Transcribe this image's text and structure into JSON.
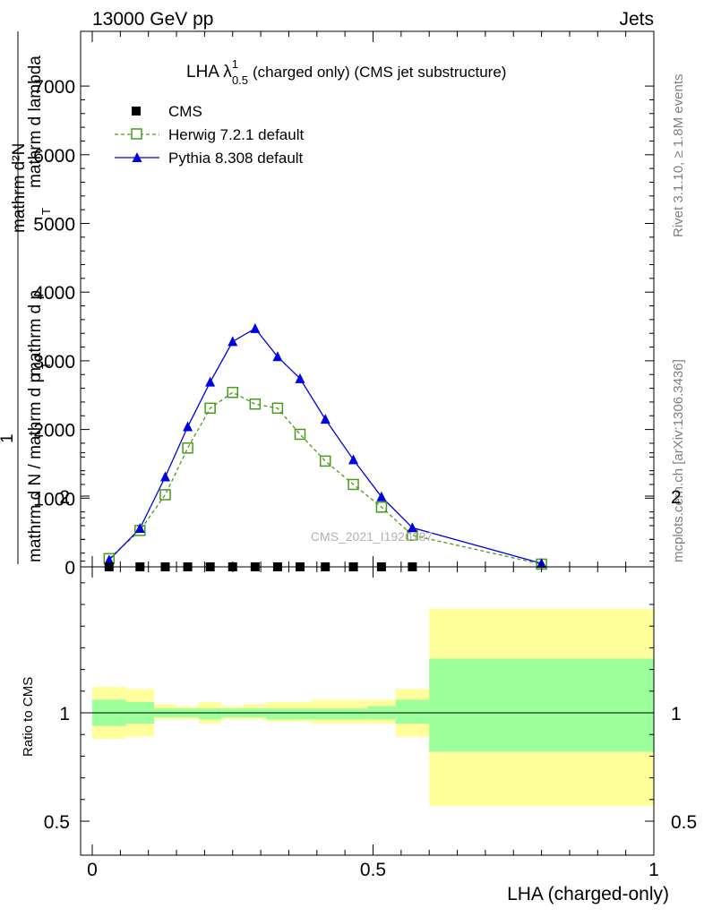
{
  "header": {
    "left": "13000 GeV pp",
    "right": "Jets"
  },
  "side_text": {
    "rivet": "Rivet 3.1.10, ≥ 1.8M events",
    "mcplots": "mcplots.cern.ch [arXiv:1306.3436]"
  },
  "watermark": "CMS_2021_I1920187",
  "chart_data": [
    {
      "type": "line",
      "title": "LHA λ¹₀.₅ (charged only) (CMS jet substructure)",
      "title_main": "LHA λ",
      "title_sup": "1",
      "title_sub": "0.5",
      "title_rest": "(charged only) (CMS jet substructure)",
      "ylabel_numerator": "mathrm d²N",
      "ylabel_numerator2": "mathrm d p",
      "ylabel_fraction_one": "1",
      "ylabel_denominator": "mathrm d N / mathrm d p",
      "ylabel_extra": "mathrm d lambda",
      "ylabel_sub": "T",
      "ylim": [
        0,
        7800
      ],
      "yticks": [
        0,
        1000,
        2000,
        3000,
        4000,
        5000,
        6000,
        7000
      ],
      "legend_position": "top-left",
      "series": [
        {
          "name": "CMS",
          "style": "black-square",
          "x": [
            0.03,
            0.085,
            0.13,
            0.17,
            0.21,
            0.25,
            0.29,
            0.33,
            0.37,
            0.415,
            0.465,
            0.515,
            0.57
          ],
          "values": [
            0,
            0,
            0,
            0,
            0,
            0,
            0,
            0,
            0,
            0,
            0,
            0,
            0
          ]
        },
        {
          "name": "Herwig 7.2.1 default",
          "style": "green-open-square-dashed",
          "x": [
            0.03,
            0.085,
            0.13,
            0.17,
            0.21,
            0.25,
            0.29,
            0.33,
            0.37,
            0.415,
            0.465,
            0.515,
            0.57,
            0.8
          ],
          "values": [
            120,
            530,
            1050,
            1730,
            2310,
            2540,
            2370,
            2310,
            1930,
            1540,
            1200,
            870,
            460,
            40
          ]
        },
        {
          "name": "Pythia 8.308 default",
          "style": "blue-filled-triangle-solid",
          "x": [
            0.03,
            0.085,
            0.13,
            0.17,
            0.21,
            0.25,
            0.29,
            0.33,
            0.37,
            0.415,
            0.465,
            0.515,
            0.57,
            0.8
          ],
          "values": [
            100,
            560,
            1310,
            2040,
            2690,
            3280,
            3470,
            3060,
            2740,
            2150,
            1560,
            1020,
            570,
            50
          ]
        }
      ]
    },
    {
      "type": "area",
      "ylabel": "Ratio to CMS",
      "xlabel": "LHA (charged-only)",
      "xlim": [
        0,
        1
      ],
      "xticks": [
        "0",
        "0.5",
        "1"
      ],
      "ylim": [
        0.3,
        2.3
      ],
      "yticks": [
        "0.5",
        "1",
        "2"
      ],
      "bins": [
        {
          "lo": 0.0,
          "hi": 0.06,
          "inner": [
            0.94,
            1.06
          ],
          "outer": [
            0.88,
            1.12
          ]
        },
        {
          "lo": 0.06,
          "hi": 0.11,
          "inner": [
            0.95,
            1.05
          ],
          "outer": [
            0.89,
            1.11
          ]
        },
        {
          "lo": 0.11,
          "hi": 0.15,
          "inner": [
            0.98,
            1.02
          ],
          "outer": [
            0.97,
            1.04
          ]
        },
        {
          "lo": 0.15,
          "hi": 0.19,
          "inner": [
            0.98,
            1.02
          ],
          "outer": [
            0.97,
            1.03
          ]
        },
        {
          "lo": 0.19,
          "hi": 0.23,
          "inner": [
            0.97,
            1.02
          ],
          "outer": [
            0.95,
            1.05
          ]
        },
        {
          "lo": 0.23,
          "hi": 0.27,
          "inner": [
            0.98,
            1.02
          ],
          "outer": [
            0.97,
            1.03
          ]
        },
        {
          "lo": 0.27,
          "hi": 0.31,
          "inner": [
            0.98,
            1.02
          ],
          "outer": [
            0.97,
            1.04
          ]
        },
        {
          "lo": 0.31,
          "hi": 0.35,
          "inner": [
            0.97,
            1.02
          ],
          "outer": [
            0.96,
            1.05
          ]
        },
        {
          "lo": 0.35,
          "hi": 0.39,
          "inner": [
            0.97,
            1.02
          ],
          "outer": [
            0.96,
            1.05
          ]
        },
        {
          "lo": 0.39,
          "hi": 0.44,
          "inner": [
            0.97,
            1.02
          ],
          "outer": [
            0.95,
            1.06
          ]
        },
        {
          "lo": 0.44,
          "hi": 0.49,
          "inner": [
            0.97,
            1.02
          ],
          "outer": [
            0.95,
            1.06
          ]
        },
        {
          "lo": 0.49,
          "hi": 0.54,
          "inner": [
            0.97,
            1.03
          ],
          "outer": [
            0.95,
            1.06
          ]
        },
        {
          "lo": 0.54,
          "hi": 0.6,
          "inner": [
            0.95,
            1.06
          ],
          "outer": [
            0.89,
            1.11
          ]
        },
        {
          "lo": 0.6,
          "hi": 1.0,
          "inner": [
            0.82,
            1.25
          ],
          "outer": [
            0.57,
            1.48
          ]
        }
      ]
    }
  ],
  "colors": {
    "herwig": "#4a9a1a",
    "pythia": "#0000e0",
    "band_inner": "#9bff9b",
    "band_outer": "#ffff9b"
  }
}
